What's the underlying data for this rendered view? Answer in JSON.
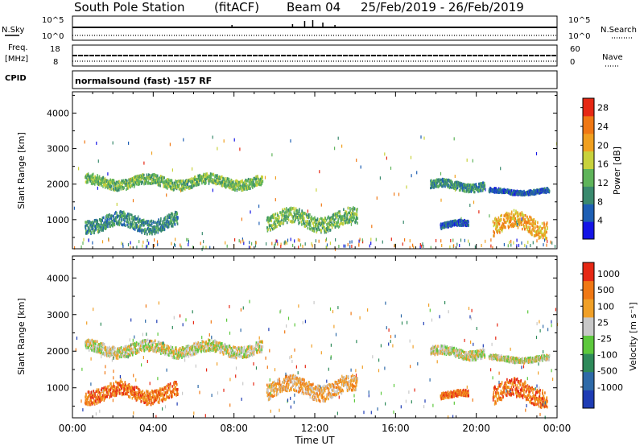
{
  "header": {
    "station": "South Pole Station",
    "mode": "(fitACF)",
    "beam": "Beam 04",
    "date_range": "25/Feb/2019 - 26/Feb/2019"
  },
  "params": {
    "nsky_label": "N.Sky",
    "nsearch_label": "N.Search",
    "freq_label_line1": "Freq.",
    "freq_label_line2": "[MHz]",
    "nave_label": "Nave",
    "cpid_label": "CPID",
    "cpid_text": "normalsound (fast) -157 RF",
    "nsky_ticks": [
      "10^5",
      "10^0"
    ],
    "nsearch_ticks": [
      "10^5",
      "10^0"
    ],
    "freq_ticks": [
      "18",
      "8"
    ],
    "nave_ticks": [
      "60",
      "0"
    ]
  },
  "colors": {
    "power_scale": [
      "#1414e6",
      "#1e5fb4",
      "#3a8a6e",
      "#5fb45a",
      "#c8d23c",
      "#f0a020",
      "#f07814",
      "#e62814"
    ],
    "velocity_scale": [
      "#1e3cb4",
      "#2e6aa8",
      "#2e8a5a",
      "#5cc83c",
      "#c8c8c8",
      "#f0a028",
      "#f07814",
      "#e62814"
    ]
  },
  "chart_data": [
    {
      "type": "heatmap",
      "name": "power",
      "xlabel": "Time UT",
      "ylabel": "Slant Range [km]",
      "x_ticks": [
        "00:00",
        "04:00",
        "08:00",
        "12:00",
        "16:00",
        "20:00",
        "00:00"
      ],
      "y_ticks": [
        1000,
        2000,
        3000,
        4000
      ],
      "ylim": [
        180,
        4600
      ],
      "xlim_hours": [
        0,
        24
      ],
      "colorbar": {
        "label": "Power [dB]",
        "ticks": [
          4,
          8,
          12,
          16,
          20,
          24,
          28
        ],
        "range": [
          0,
          30
        ]
      },
      "bands": [
        {
          "start_h": 0.6,
          "end_h": 9.4,
          "center_km": 2050,
          "thickness_km": 280,
          "level": 3
        },
        {
          "start_h": 17.7,
          "end_h": 20.4,
          "center_km": 1950,
          "thickness_km": 220,
          "level": 2
        },
        {
          "start_h": 20.6,
          "end_h": 23.6,
          "center_km": 1780,
          "thickness_km": 120,
          "level": 1
        },
        {
          "start_h": 0.6,
          "end_h": 5.2,
          "center_km": 900,
          "thickness_km": 380,
          "level": 2
        },
        {
          "start_h": 9.6,
          "end_h": 14.1,
          "center_km": 980,
          "thickness_km": 420,
          "level": 3
        },
        {
          "start_h": 18.2,
          "end_h": 19.6,
          "center_km": 850,
          "thickness_km": 160,
          "level": 1
        },
        {
          "start_h": 20.8,
          "end_h": 23.5,
          "center_km": 850,
          "thickness_km": 480,
          "level": 5
        }
      ]
    },
    {
      "type": "heatmap",
      "name": "velocity",
      "xlabel": "Time UT",
      "ylabel": "Slant Range [km]",
      "x_ticks": [
        "00:00",
        "04:00",
        "08:00",
        "12:00",
        "16:00",
        "20:00",
        "00:00"
      ],
      "y_ticks": [
        1000,
        2000,
        3000,
        4000
      ],
      "ylim": [
        180,
        4600
      ],
      "xlim_hours": [
        0,
        24
      ],
      "colorbar": {
        "label": "Velocity [m s⁻¹]",
        "ticks": [
          1000,
          500,
          100,
          25,
          -25,
          -100,
          -500,
          -1000
        ],
        "range": [
          -1000,
          1000
        ]
      },
      "bands": [
        {
          "start_h": 0.6,
          "end_h": 9.4,
          "center_km": 2050,
          "thickness_km": 300,
          "level": 4
        },
        {
          "start_h": 17.7,
          "end_h": 20.4,
          "center_km": 1950,
          "thickness_km": 240,
          "level": 4
        },
        {
          "start_h": 20.6,
          "end_h": 23.6,
          "center_km": 1780,
          "thickness_km": 140,
          "level": 4
        },
        {
          "start_h": 0.6,
          "end_h": 5.2,
          "center_km": 850,
          "thickness_km": 380,
          "level": 6
        },
        {
          "start_h": 9.6,
          "end_h": 14.1,
          "center_km": 980,
          "thickness_km": 420,
          "level": 5
        },
        {
          "start_h": 18.2,
          "end_h": 19.6,
          "center_km": 800,
          "thickness_km": 160,
          "level": 6
        },
        {
          "start_h": 20.8,
          "end_h": 23.5,
          "center_km": 850,
          "thickness_km": 480,
          "level": 6
        }
      ]
    }
  ]
}
